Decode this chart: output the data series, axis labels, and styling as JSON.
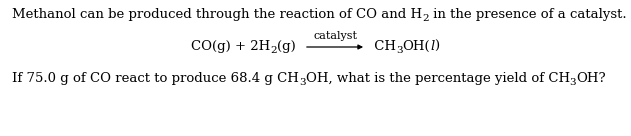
{
  "bg_color": "#ffffff",
  "font_size": 9.5,
  "font_family": "DejaVu Serif",
  "sub_font_size": 7.5,
  "line1_parts": [
    "Methanol can be produced through the reaction of CO and H",
    "2",
    " in the presence of a catalyst."
  ],
  "eq_left_parts": [
    "CO(g) + 2H",
    "2",
    "(g)"
  ],
  "catalyst_label": "catalyst",
  "eq_right_parts": [
    " CH",
    "3",
    "OH("
  ],
  "eq_right_end": "l",
  "eq_right_close": ")",
  "line3_parts": [
    "If 75.0 g of CO react to produce 68.4 g CH",
    "3",
    "OH, what is the percentage yield of CH",
    "3",
    "OH?"
  ],
  "fig_width": 6.31,
  "fig_height": 1.36,
  "dpi": 100
}
